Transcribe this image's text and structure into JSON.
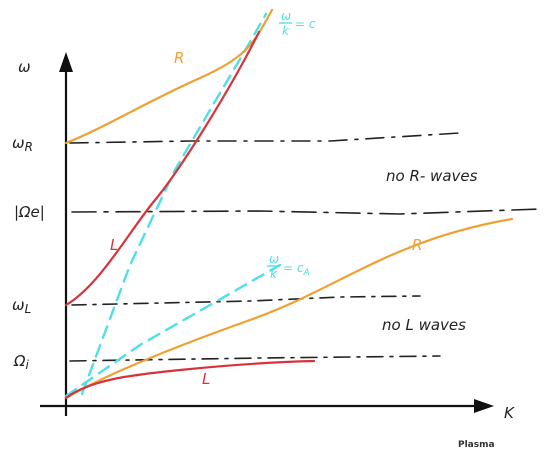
{
  "diagram": {
    "axis_labels": {
      "y": "ω",
      "x": "K"
    },
    "levels": {
      "omega_r": "ω",
      "omega_r_sub": "R",
      "omega_e": "|Ωe|",
      "omega_l": "ω",
      "omega_l_sub": "L",
      "omega_i": "Ω",
      "omega_i_sub": "i"
    },
    "curve_labels": {
      "upper_r": "R",
      "upper_l": "L",
      "lower_r": "R",
      "lower_l": "L"
    },
    "light_line": {
      "num": "ω",
      "den": "k",
      "rhs": "= c"
    },
    "alfven_line": {
      "num": "ω",
      "den": "k",
      "rhs": "= c",
      "rhs_sub": "A"
    },
    "annotations": {
      "no_r": "no R- waves",
      "no_l": "no L waves"
    },
    "colors": {
      "R_branch": "#f0a030",
      "L_branch": "#d8323a",
      "asymptotes": "#4fe0e6",
      "axes": "#111111"
    }
  },
  "footer": "Plasma"
}
